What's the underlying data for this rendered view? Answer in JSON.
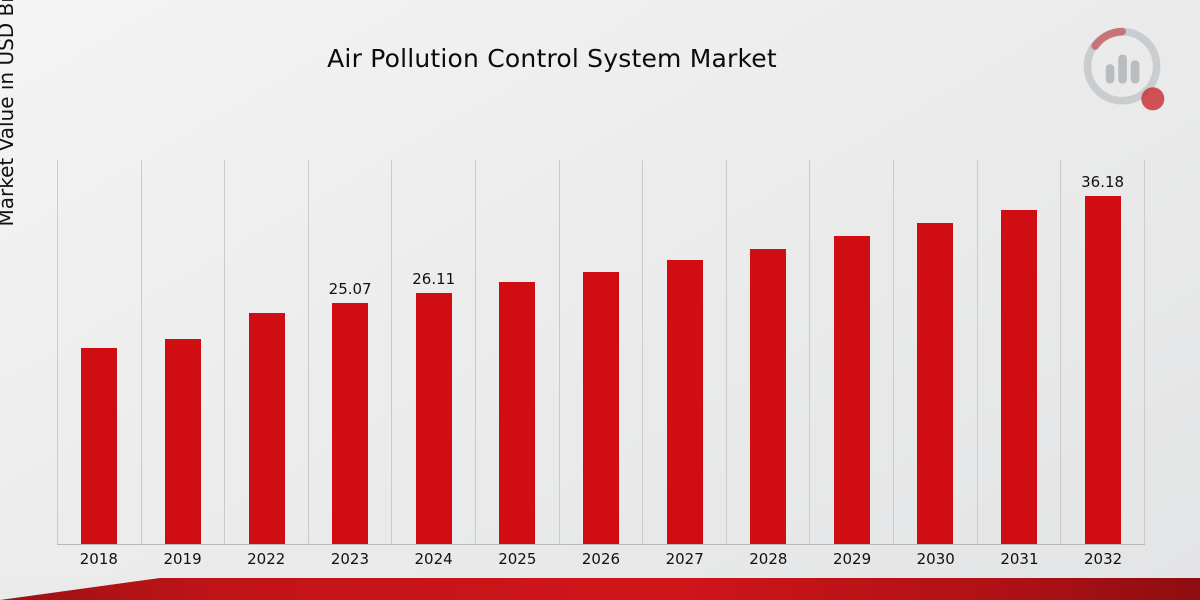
{
  "title": "Air Pollution Control System Market",
  "y_axis_label": "Market Value in USD Billion",
  "logo": {
    "name": "market-research-future-logo"
  },
  "colors": {
    "bar": "#cf0d13",
    "gridline": "#cbcbcb",
    "footer_dark": "#8d0d10",
    "footer_bright": "#d0151a",
    "background": "#ececec"
  },
  "chart_data": {
    "type": "bar",
    "title": "Air Pollution Control System Market",
    "xlabel": "",
    "ylabel": "Market Value in USD Billion",
    "categories": [
      "2018",
      "2019",
      "2022",
      "2023",
      "2024",
      "2025",
      "2026",
      "2027",
      "2028",
      "2029",
      "2030",
      "2031",
      "2032"
    ],
    "values": [
      20.4,
      21.3,
      24.0,
      25.07,
      26.11,
      27.2,
      28.3,
      29.5,
      30.7,
      32.0,
      33.3,
      34.7,
      36.18
    ],
    "data_labels": {
      "2023": "25.07",
      "2024": "26.11",
      "2032": "36.18"
    },
    "ylim": [
      0,
      40
    ],
    "grid": "vertical",
    "legend_position": "none",
    "bar_color": "#cf0d13"
  }
}
